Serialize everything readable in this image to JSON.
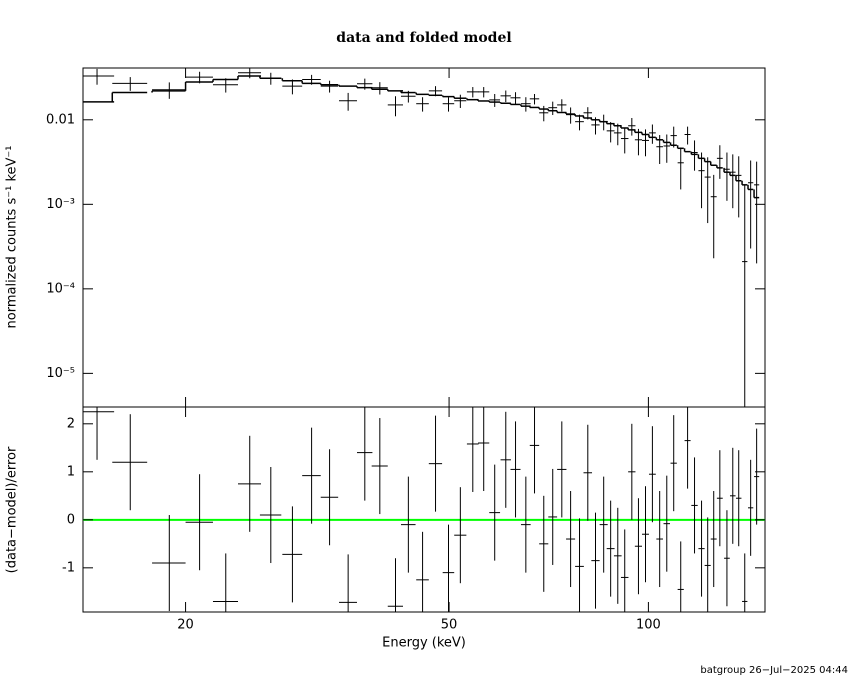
{
  "chart_data": [
    {
      "type": "spectrum",
      "title": "data and folded model",
      "ylabel": "normalized counts s⁻¹ keV⁻¹",
      "log_x": true,
      "log_y": true,
      "color": "#000000",
      "x": [
        14.7,
        16.5,
        18.9,
        21,
        23,
        25,
        26.9,
        29,
        31,
        33,
        35.2,
        37.3,
        39.3,
        41.5,
        43.4,
        45.6,
        47.7,
        49.9,
        52,
        54.3,
        56.4,
        58.6,
        60.9,
        63,
        65.3,
        67.3,
        69.5,
        71.7,
        74,
        76.3,
        78.7,
        81,
        83.2,
        85.6,
        87.7,
        89.9,
        92.1,
        94.4,
        96.6,
        99,
        101.4,
        104,
        106.6,
        109.2,
        111.9,
        114.6,
        117.4,
        120.3,
        122.9,
        125.5,
        128.2,
        131.4,
        134.1,
        136.9,
        139.8,
        142.7,
        145.7
      ],
      "xerr": [
        0.9,
        1,
        1.1,
        1,
        1,
        1,
        1,
        1,
        1,
        1,
        1.1,
        1,
        1.1,
        1.1,
        1.1,
        1,
        1.1,
        1,
        1.1,
        1.1,
        1.1,
        1.1,
        1.1,
        1.1,
        1.1,
        1.1,
        1.1,
        1.1,
        1.2,
        1.2,
        1.2,
        1.2,
        1.2,
        1.2,
        1.2,
        1.2,
        1.2,
        1.2,
        1.2,
        1.2,
        1.2,
        1.2,
        1.2,
        1.2,
        1.2,
        1.2,
        1.3,
        1.3,
        1.3,
        1.3,
        1.3,
        1.3,
        1.3,
        1.3,
        1.3,
        1.3,
        1.3
      ],
      "values": [
        0.033,
        0.027,
        0.0227,
        0.032,
        0.026,
        0.036,
        0.031,
        0.025,
        0.03,
        0.025,
        0.0168,
        0.0267,
        0.0239,
        0.015,
        0.019,
        0.0155,
        0.022,
        0.0155,
        0.0168,
        0.0214,
        0.0214,
        0.0172,
        0.0192,
        0.0182,
        0.0155,
        0.0177,
        0.0121,
        0.0139,
        0.015,
        0.0115,
        0.0095,
        0.0121,
        0.0087,
        0.0095,
        0.0074,
        0.007,
        0.006,
        0.0085,
        0.0058,
        0.0057,
        0.007,
        0.0048,
        0.0049,
        0.0065,
        0.0031,
        0.0067,
        0.0041,
        0.0025,
        0.0021,
        0.00123,
        0.0035,
        0.0026,
        0.0024,
        0.0022,
        0.00021,
        0.0018,
        0.0017
      ],
      "yerr": [
        0.007,
        0.005,
        0.005,
        0.005,
        0.005,
        0.005,
        0.005,
        0.005,
        0.004,
        0.004,
        0.004,
        0.004,
        0.004,
        0.004,
        0.003,
        0.003,
        0.003,
        0.003,
        0.003,
        0.003,
        0.003,
        0.003,
        0.003,
        0.003,
        0.003,
        0.0025,
        0.0025,
        0.0025,
        0.0025,
        0.0025,
        0.002,
        0.002,
        0.002,
        0.002,
        0.002,
        0.002,
        0.002,
        0.002,
        0.002,
        0.002,
        0.0018,
        0.0018,
        0.0018,
        0.0018,
        0.0016,
        0.0016,
        0.0016,
        0.0016,
        0.0015,
        0.001,
        0.0015,
        0.0015,
        0.0015,
        0.0015,
        0.0015,
        0.0015,
        0.0015
      ],
      "model": [
        0.0163,
        0.021,
        0.022,
        0.028,
        0.03,
        0.033,
        0.031,
        0.029,
        0.027,
        0.026,
        0.025,
        0.024,
        0.023,
        0.022,
        0.021,
        0.02,
        0.0195,
        0.0188,
        0.018,
        0.0173,
        0.0167,
        0.0162,
        0.0157,
        0.0152,
        0.0145,
        0.014,
        0.0134,
        0.0128,
        0.0122,
        0.0117,
        0.0111,
        0.0105,
        0.01,
        0.0095,
        0.009,
        0.0085,
        0.008,
        0.0076,
        0.0071,
        0.0067,
        0.0062,
        0.0058,
        0.0054,
        0.005,
        0.0046,
        0.0042,
        0.0039,
        0.0035,
        0.0032,
        0.0029,
        0.0027,
        0.0024,
        0.0022,
        0.0019,
        0.0017,
        0.0015,
        0.0012
      ],
      "xlim": [
        14,
        150
      ],
      "ylim": [
        4e-06,
        0.041
      ],
      "xticks": [
        20,
        50,
        100
      ],
      "yticks": [
        {
          "value": 0.01,
          "label": "0.01"
        },
        {
          "value": 0.001,
          "label": "10⁻³"
        },
        {
          "value": 0.0001,
          "label": "10⁻⁴"
        },
        {
          "value": 1e-05,
          "label": "10⁻⁵"
        }
      ]
    },
    {
      "type": "residual",
      "xlabel": "Energy (keV)",
      "ylabel": "(data−model)/error",
      "log_x": true,
      "color": "#000000",
      "zero_line": 0,
      "zero_line_color": "#00ff00",
      "x": [
        14.7,
        16.5,
        18.9,
        21,
        23,
        25,
        26.9,
        29,
        31,
        33,
        35.2,
        37.3,
        39.3,
        41.5,
        43.4,
        45.6,
        47.7,
        49.9,
        52,
        54.3,
        56.4,
        58.6,
        60.9,
        63,
        65.3,
        67.3,
        69.5,
        71.7,
        74,
        76.3,
        78.7,
        81,
        83.2,
        85.6,
        87.7,
        89.9,
        92.1,
        94.4,
        96.6,
        99,
        101.4,
        104,
        106.6,
        109.2,
        111.9,
        114.6,
        117.4,
        120.3,
        122.9,
        125.5,
        128.2,
        131.4,
        134.1,
        136.9,
        139.8,
        142.7,
        145.7
      ],
      "xerr": [
        0.9,
        1,
        1.1,
        1,
        1,
        1,
        1,
        1,
        1,
        1,
        1.1,
        1,
        1.1,
        1.1,
        1.1,
        1,
        1.1,
        1,
        1.1,
        1.1,
        1.1,
        1.1,
        1.1,
        1.1,
        1.1,
        1.1,
        1.1,
        1.1,
        1.2,
        1.2,
        1.2,
        1.2,
        1.2,
        1.2,
        1.2,
        1.2,
        1.2,
        1.2,
        1.2,
        1.2,
        1.2,
        1.2,
        1.2,
        1.2,
        1.2,
        1.2,
        1.3,
        1.3,
        1.3,
        1.3,
        1.3,
        1.3,
        1.3,
        1.3,
        1.3,
        1.3,
        1.3
      ],
      "values": [
        2.25,
        1.2,
        -0.9,
        -0.05,
        -1.7,
        0.75,
        0.1,
        -0.72,
        0.92,
        0.47,
        -1.72,
        1.4,
        1.12,
        -1.8,
        -0.1,
        -1.25,
        1.17,
        -1.1,
        -0.32,
        1.58,
        1.6,
        0.15,
        1.25,
        1.05,
        -0.1,
        1.55,
        -0.5,
        0.06,
        1.05,
        -0.4,
        -0.97,
        0.98,
        -0.85,
        -0.1,
        -0.6,
        -0.75,
        -1.2,
        1,
        -0.55,
        -0.3,
        0.95,
        -0.4,
        -0.08,
        1.18,
        -1.45,
        1.65,
        0.3,
        -0.6,
        -0.95,
        -0.4,
        0.45,
        -0.8,
        0.5,
        0.45,
        -1.7,
        0.25,
        0.9
      ],
      "yerr": [
        1,
        1,
        1,
        1,
        1,
        1,
        1,
        1,
        1,
        1,
        1,
        1,
        1,
        1,
        1,
        1,
        1,
        1,
        1,
        1,
        1,
        1,
        1,
        1,
        1,
        1,
        1,
        1,
        1,
        1,
        1,
        1,
        1,
        1,
        1,
        1,
        1,
        1,
        1,
        1,
        1,
        1,
        1,
        1,
        1,
        1,
        1,
        1,
        1,
        1,
        1,
        1,
        1,
        1,
        1,
        1,
        1
      ],
      "xlim": [
        14,
        150
      ],
      "ylim": [
        -1.92,
        2.35
      ],
      "xticks": [
        20,
        50,
        100
      ],
      "yticks": [
        -1,
        0,
        1,
        2
      ]
    }
  ],
  "footer": "batgroup 26−Jul−2025 04:44"
}
